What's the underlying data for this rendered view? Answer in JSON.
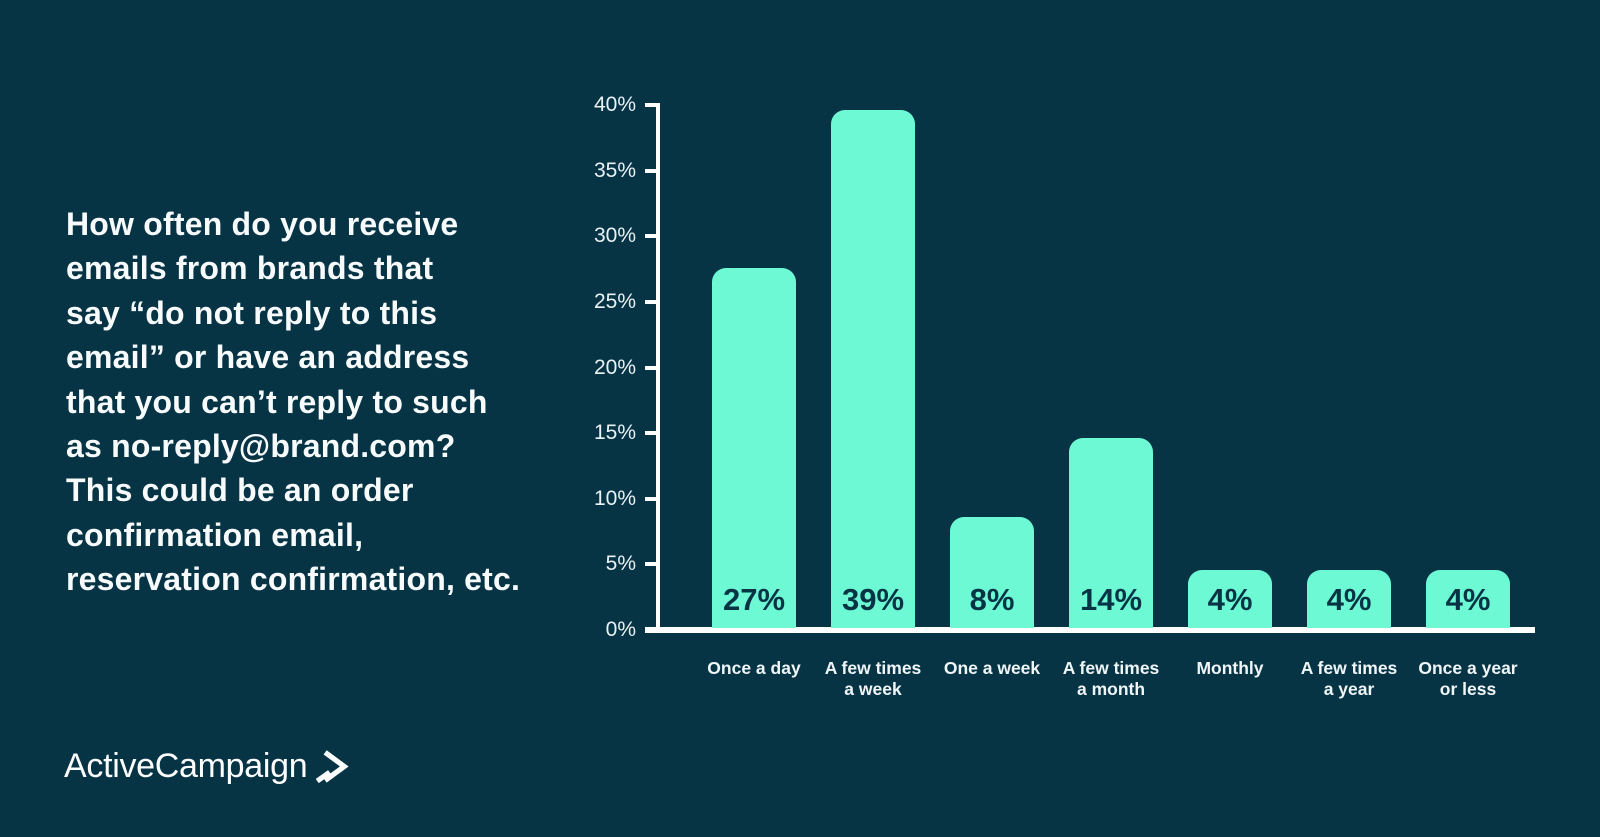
{
  "page": {
    "background_color": "#073445",
    "accent_color": "#6CF9D4",
    "text_color": "#F7FBFC"
  },
  "question": {
    "text": "How often do you receive\nemails from brands that\nsay “do not reply to this\nemail” or have an address\nthat you can’t reply to such\nas no-reply@brand.com?\nThis could be an order\nconfirmation email,\nreservation confirmation, etc."
  },
  "logo": {
    "text": "ActiveCampaign",
    "mark": "chevron-right"
  },
  "chart_data": {
    "type": "bar",
    "title": "How often do you receive emails from brands that say “do not reply to this email” or have an address that you can’t reply to such as no-reply@brand.com? This could be an order confirmation email, reservation confirmation, etc.",
    "categories": [
      "Once a day",
      "A few times\na week",
      "One a week",
      "A few times\na month",
      "Monthly",
      "A few times\na year",
      "Once a year\nor less"
    ],
    "values": [
      27,
      39,
      8,
      14,
      4,
      4,
      4
    ],
    "value_labels": [
      "27%",
      "39%",
      "8%",
      "14%",
      "4%",
      "4%",
      "4%"
    ],
    "xlabel": "",
    "ylabel": "",
    "ylim": [
      0,
      40
    ],
    "yticks": [
      "0%",
      "5%",
      "10%",
      "15%",
      "20%",
      "25%",
      "30%",
      "35%",
      "40%"
    ],
    "grid": false,
    "legend": "none",
    "bar_color": "#6CF9D4",
    "value_label_color": "#073445",
    "axis_color": "#FFFFFF",
    "tick_label_color": "#E9F2F4"
  }
}
